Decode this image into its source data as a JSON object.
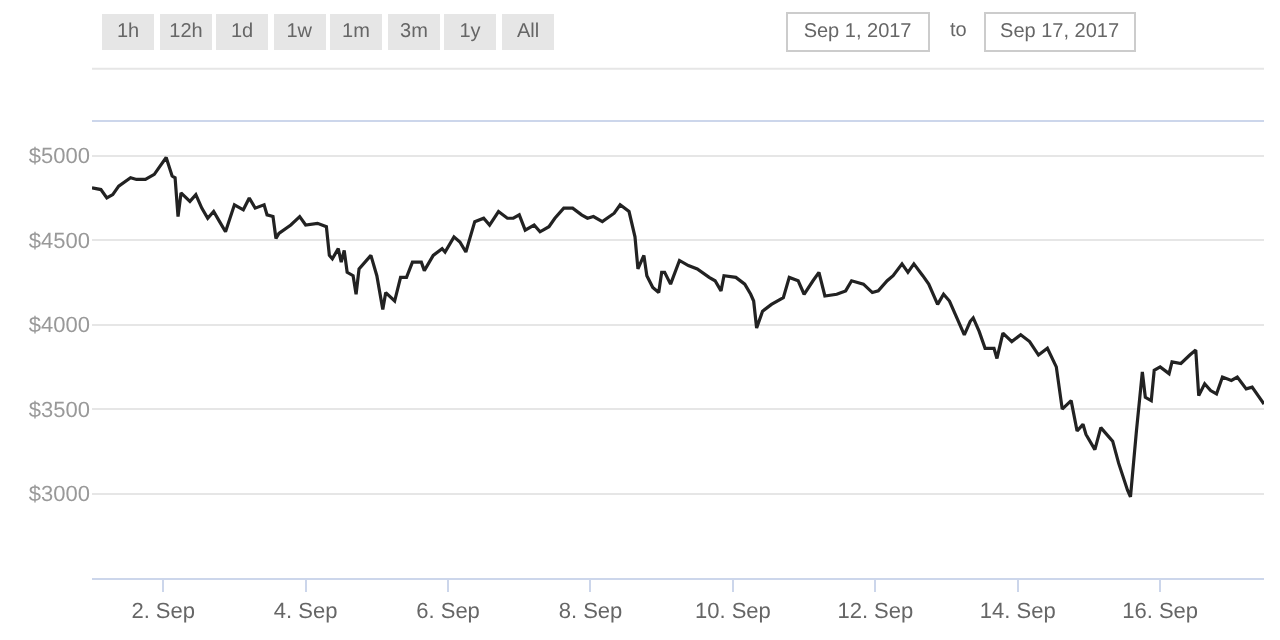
{
  "chart_data": {
    "type": "line",
    "annotations": [
      "1h",
      "12h",
      "1d",
      "1w",
      "1m",
      "3m",
      "1y",
      "All",
      "Sep 1, 2017",
      "to",
      "Sep 17, 2017"
    ],
    "x": [
      "2017-09-01T00:00",
      "2017-09-01T03:00",
      "2017-09-01T05:00",
      "2017-09-01T07:00",
      "2017-09-01T09:00",
      "2017-09-01T13:00",
      "2017-09-01T15:00",
      "2017-09-01T18:00",
      "2017-09-01T21:00",
      "2017-09-01T23:00",
      "2017-09-02T01:00",
      "2017-09-02T03:00",
      "2017-09-02T04:00",
      "2017-09-02T05:00",
      "2017-09-02T06:00",
      "2017-09-02T09:00",
      "2017-09-02T11:00",
      "2017-09-02T13:00",
      "2017-09-02T15:00",
      "2017-09-02T17:00",
      "2017-09-02T19:00",
      "2017-09-02T21:00",
      "2017-09-03T00:00",
      "2017-09-03T03:00",
      "2017-09-03T05:00",
      "2017-09-03T07:00",
      "2017-09-03T10:00",
      "2017-09-03T11:00",
      "2017-09-03T13:00",
      "2017-09-03T14:00",
      "2017-09-03T15:00",
      "2017-09-03T19:00",
      "2017-09-03T22:00",
      "2017-09-04T00:00",
      "2017-09-04T04:00",
      "2017-09-04T07:00",
      "2017-09-04T08:00",
      "2017-09-04T09:00",
      "2017-09-04T11:00",
      "2017-09-04T12:00",
      "2017-09-04T13:00",
      "2017-09-04T14:00",
      "2017-09-04T16:00",
      "2017-09-04T17:00",
      "2017-09-04T18:00",
      "2017-09-04T22:00",
      "2017-09-05T00:00",
      "2017-09-05T02:00",
      "2017-09-05T03:00",
      "2017-09-05T06:00",
      "2017-09-05T08:00",
      "2017-09-05T10:00",
      "2017-09-05T12:00",
      "2017-09-05T15:00",
      "2017-09-05T16:00",
      "2017-09-05T19:00",
      "2017-09-05T22:00",
      "2017-09-05T23:00",
      "2017-09-06T02:00",
      "2017-09-06T04:00",
      "2017-09-06T06:00",
      "2017-09-06T07:00",
      "2017-09-06T09:00",
      "2017-09-06T12:00",
      "2017-09-06T14:00",
      "2017-09-06T17:00",
      "2017-09-06T20:00",
      "2017-09-06T22:00",
      "2017-09-07T00:00",
      "2017-09-07T02:00",
      "2017-09-07T05:00",
      "2017-09-07T07:00",
      "2017-09-07T10:00",
      "2017-09-07T12:00",
      "2017-09-07T15:00",
      "2017-09-07T18:00",
      "2017-09-07T21:00",
      "2017-09-07T23:00",
      "2017-09-08T01:00",
      "2017-09-08T04:00",
      "2017-09-08T08:00",
      "2017-09-08T10:00",
      "2017-09-08T13:00",
      "2017-09-08T15:00",
      "2017-09-08T16:00",
      "2017-09-08T18:00",
      "2017-09-08T19:00",
      "2017-09-08T21:00",
      "2017-09-08T23:00",
      "2017-09-09T00:00",
      "2017-09-09T01:00",
      "2017-09-09T03:00",
      "2017-09-09T06:00",
      "2017-09-09T09:00",
      "2017-09-09T12:00",
      "2017-09-09T16:00",
      "2017-09-09T18:00",
      "2017-09-09T20:00",
      "2017-09-09T21:00",
      "2017-09-10T01:00",
      "2017-09-10T04:00",
      "2017-09-10T06:00",
      "2017-09-10T07:00",
      "2017-09-10T08:00",
      "2017-09-10T10:00",
      "2017-09-10T13:00",
      "2017-09-10T17:00",
      "2017-09-10T19:00",
      "2017-09-10T22:00",
      "2017-09-11T00:00",
      "2017-09-11T03:00",
      "2017-09-11T05:00",
      "2017-09-11T07:00",
      "2017-09-11T11:00",
      "2017-09-11T14:00",
      "2017-09-11T16:00",
      "2017-09-11T20:00",
      "2017-09-11T23:00",
      "2017-09-12T01:00",
      "2017-09-12T04:00",
      "2017-09-12T06:00",
      "2017-09-12T09:00",
      "2017-09-12T11:00",
      "2017-09-12T13:00",
      "2017-09-12T16:00",
      "2017-09-12T18:00",
      "2017-09-12T21:00",
      "2017-09-12T23:00",
      "2017-09-13T01:00",
      "2017-09-13T03:00",
      "2017-09-13T06:00",
      "2017-09-13T08:00",
      "2017-09-13T09:00",
      "2017-09-13T11:00",
      "2017-09-13T13:00",
      "2017-09-13T16:00",
      "2017-09-13T17:00",
      "2017-09-13T19:00",
      "2017-09-13T22:00",
      "2017-09-14T01:00",
      "2017-09-14T04:00",
      "2017-09-14T07:00",
      "2017-09-14T10:00",
      "2017-09-14T13:00",
      "2017-09-14T15:00",
      "2017-09-14T18:00",
      "2017-09-14T20:00",
      "2017-09-14T22:00",
      "2017-09-14T23:00",
      "2017-09-15T02:00",
      "2017-09-15T04:00",
      "2017-09-15T07:00",
      "2017-09-15T08:00",
      "2017-09-15T10:00",
      "2017-09-15T13:00",
      "2017-09-15T14:00",
      "2017-09-15T16:00",
      "2017-09-15T18:00",
      "2017-09-15T19:00",
      "2017-09-15T21:00",
      "2017-09-15T22:00",
      "2017-09-16T00:00",
      "2017-09-16T03:00",
      "2017-09-16T04:00",
      "2017-09-16T07:00",
      "2017-09-16T10:00",
      "2017-09-16T12:00",
      "2017-09-16T13:00",
      "2017-09-16T15:00",
      "2017-09-16T17:00",
      "2017-09-16T19:00",
      "2017-09-16T21:00",
      "2017-09-17T00:00",
      "2017-09-17T02:00",
      "2017-09-17T05:00",
      "2017-09-17T07:00",
      "2017-09-17T11:00"
    ],
    "series": [
      {
        "color": "#222222",
        "values": [
          4810,
          4800,
          4750,
          4770,
          4820,
          4870,
          4860,
          4860,
          4890,
          4940,
          4990,
          4880,
          4870,
          4640,
          4780,
          4730,
          4770,
          4690,
          4630,
          4670,
          4610,
          4550,
          4710,
          4680,
          4750,
          4690,
          4710,
          4650,
          4640,
          4510,
          4540,
          4590,
          4640,
          4590,
          4600,
          4580,
          4410,
          4390,
          4450,
          4370,
          4440,
          4310,
          4290,
          4180,
          4330,
          4410,
          4290,
          4090,
          4190,
          4140,
          4280,
          4280,
          4370,
          4370,
          4320,
          4410,
          4450,
          4430,
          4520,
          4490,
          4430,
          4490,
          4610,
          4630,
          4590,
          4670,
          4630,
          4630,
          4650,
          4560,
          4590,
          4550,
          4580,
          4630,
          4690,
          4690,
          4650,
          4630,
          4640,
          4610,
          4660,
          4710,
          4670,
          4520,
          4330,
          4410,
          4290,
          4220,
          4190,
          4310,
          4310,
          4240,
          4380,
          4350,
          4330,
          4280,
          4260,
          4200,
          4290,
          4280,
          4240,
          4180,
          4140,
          3980,
          4080,
          4120,
          4160,
          4280,
          4260,
          4180,
          4260,
          4310,
          4170,
          4180,
          4200,
          4260,
          4240,
          4190,
          4200,
          4260,
          4290,
          4360,
          4310,
          4360,
          4290,
          4240,
          4120,
          4180,
          4140,
          4060,
          3940,
          4020,
          4040,
          3960,
          3860,
          3860,
          3800,
          3950,
          3900,
          3940,
          3900,
          3820,
          3860,
          3750,
          3500,
          3550,
          3370,
          3410,
          3350,
          3260,
          3390,
          3330,
          3310,
          3180,
          3020,
          2980,
          3370,
          3720,
          3570,
          3550,
          3730,
          3750,
          3710,
          3780,
          3770,
          3820,
          3850,
          3580,
          3650,
          3610,
          3590,
          3690,
          3670,
          3690,
          3620,
          3630,
          3530
        ]
      }
    ],
    "xlim": [
      "2017-09-01T00:00",
      "2017-09-17T11:00"
    ],
    "xticks": [
      {
        "value": "2017-09-02",
        "label": "2. Sep"
      },
      {
        "value": "2017-09-04",
        "label": "4. Sep"
      },
      {
        "value": "2017-09-06",
        "label": "6. Sep"
      },
      {
        "value": "2017-09-08",
        "label": "8. Sep"
      },
      {
        "value": "2017-09-10",
        "label": "10. Sep"
      },
      {
        "value": "2017-09-12",
        "label": "12. Sep"
      },
      {
        "value": "2017-09-14",
        "label": "14. Sep"
      },
      {
        "value": "2017-09-16",
        "label": "16. Sep"
      }
    ],
    "ylim": [
      2500,
      5200
    ],
    "yticks": [
      {
        "value": 3000,
        "label": "$3000"
      },
      {
        "value": 3500,
        "label": "$3500"
      },
      {
        "value": 4000,
        "label": "$4000"
      },
      {
        "value": 4500,
        "label": "$4500"
      },
      {
        "value": 5000,
        "label": "$5000"
      }
    ],
    "grid": "y",
    "marker": "none",
    "line_style": "solid"
  }
}
